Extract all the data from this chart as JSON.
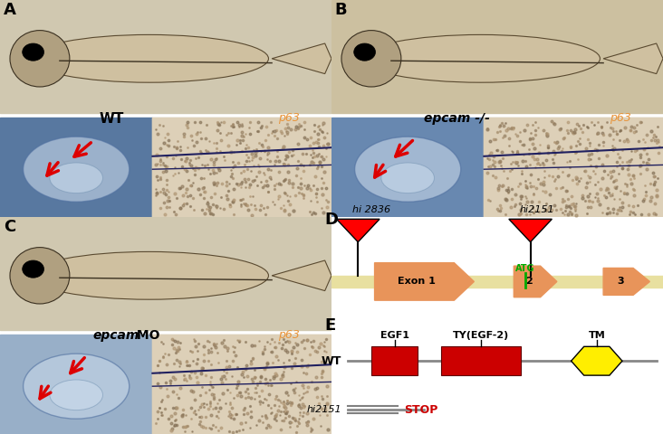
{
  "fig_width": 7.32,
  "fig_height": 4.8,
  "dpi": 100,
  "bg_color": "#ffffff",
  "panel_label_fontsize": 13,
  "panel_A_label": "A",
  "panel_B_label": "B",
  "panel_C_label": "C",
  "panel_D_label": "D",
  "panel_E_label": "E",
  "wt_text": "WT",
  "epcam_mut_text": "epcam -/-",
  "epcam_mo_text": "epcam",
  "epcam_mo_text2": "MO",
  "p63_text": "p63",
  "p63_color": "#E8943A",
  "exon_color": "#E8945A",
  "atg_color": "#00aa00",
  "triangle_fill": "#cc0000",
  "triangle_edge": "#000000",
  "gene_line_color": "#e8e0a0",
  "egf1_label": "EGF1",
  "egf2_label": "TY(EGF-2)",
  "tm_label": "TM",
  "domain_red": "#cc0000",
  "domain_yellow": "#ffee00",
  "domain_line": "#888888",
  "wt_label": "WT",
  "hi2151_label": "hi2151",
  "stop_label": "STOP",
  "stop_color": "#cc0000",
  "insertion1_label": "hi 2836",
  "insertion2_label": "hi2151",
  "fish_bg_top": "#d8cbb0",
  "fish_bg_gray": "#e8e5e0",
  "ear_bg_A": "#6888a8",
  "ear_bg_B": "#8898b8",
  "ear_bg_C": "#a8b8c8",
  "fin_bg": "#d8cbb0",
  "label_white": "#ffffff",
  "arrow_red": "#dd0000"
}
